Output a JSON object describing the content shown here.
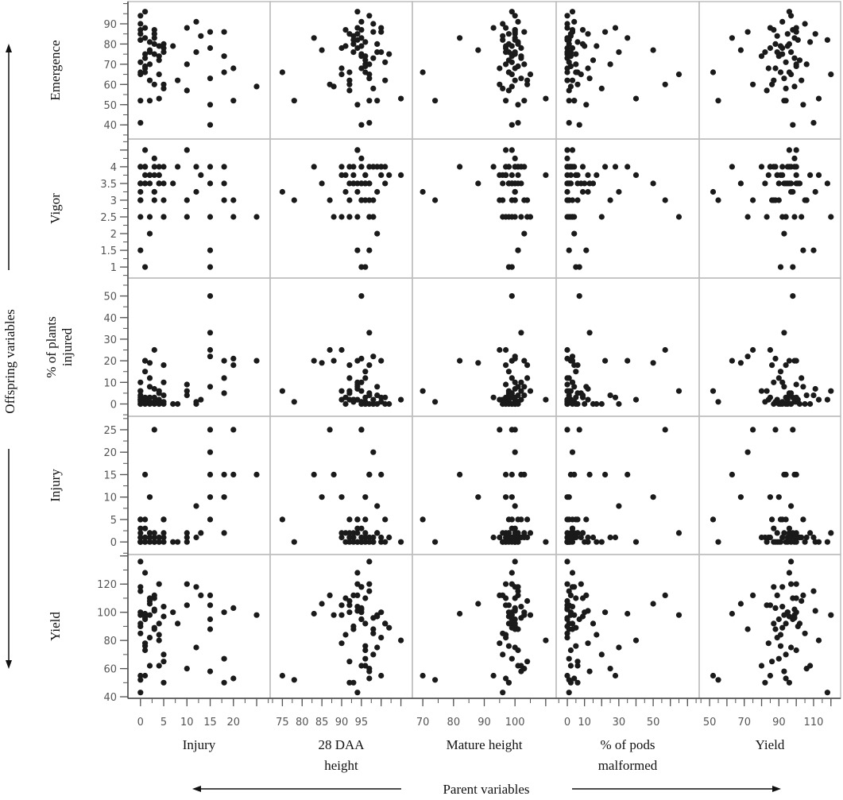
{
  "chart_data": {
    "type": "scatter",
    "layout": "scatterplot-matrix",
    "grid": false,
    "side_label": "Offspring variables",
    "bottom_label": "Parent variables",
    "columns": [
      {
        "key": "p_injury",
        "label": "Injury",
        "xlim": [
          -2.7,
          27.9
        ],
        "ticks": [
          0,
          5,
          10,
          15,
          20,
          25
        ],
        "tick_labels": [
          "0",
          "5",
          "10",
          "15",
          "20",
          ""
        ]
      },
      {
        "key": "p_daa28",
        "label": "28 DAA height",
        "label_lines": [
          "28 DAA",
          "height"
        ],
        "xlim": [
          71.9,
          107.9
        ],
        "ticks": [
          75,
          80,
          85,
          90,
          95,
          100,
          105
        ],
        "tick_labels": [
          "75",
          "80",
          "85",
          "90",
          "95",
          "",
          ""
        ]
      },
      {
        "key": "p_mature",
        "label": "Mature height",
        "xlim": [
          66.6,
          113.4
        ],
        "ticks": [
          70,
          80,
          90,
          100,
          110
        ],
        "tick_labels": [
          "70",
          "80",
          "90",
          "100",
          ""
        ]
      },
      {
        "key": "p_pods",
        "label": "% of pods malformed",
        "label_lines": [
          "% of pods",
          "malformed"
        ],
        "xlim": [
          -6.5,
          76.8
        ],
        "ticks": [
          0,
          10,
          20,
          30,
          40,
          50,
          60,
          70
        ],
        "tick_labels": [
          "0",
          "10",
          "",
          "30",
          "",
          "50",
          "",
          ""
        ]
      },
      {
        "key": "p_yield",
        "label": "Yield",
        "xlim": [
          44,
          125.6
        ],
        "ticks": [
          50,
          60,
          70,
          80,
          90,
          100,
          110,
          120
        ],
        "tick_labels": [
          "50",
          "",
          "70",
          "",
          "90",
          "",
          "110",
          ""
        ]
      }
    ],
    "rows": [
      {
        "key": "o_emergence",
        "label": "Emergence",
        "label_lines": [
          "Emergence"
        ],
        "ylim": [
          33,
          101
        ],
        "ticks": [
          40,
          50,
          60,
          70,
          80,
          90
        ],
        "tick_labels": [
          "40",
          "50",
          "60",
          "70",
          "80",
          "90"
        ]
      },
      {
        "key": "o_vigor",
        "label": "Vigor",
        "label_lines": [
          "Vigor"
        ],
        "ylim": [
          0.67,
          4.83
        ],
        "ticks": [
          1,
          1.5,
          2,
          2.5,
          3,
          3.5,
          4,
          4.5
        ],
        "tick_labels": [
          "1",
          "1.5",
          "2",
          "2.5",
          "3",
          "3.5",
          "4",
          ""
        ]
      },
      {
        "key": "o_plants_injured",
        "label": "% of plants injured",
        "label_lines": [
          "% of plants",
          "injured"
        ],
        "ylim": [
          -5.7,
          58.3
        ],
        "ticks": [
          0,
          10,
          20,
          30,
          40,
          50
        ],
        "tick_labels": [
          "0",
          "10",
          "20",
          "30",
          "40",
          "50"
        ]
      },
      {
        "key": "o_injury",
        "label": "Injury",
        "label_lines": [
          "Injury"
        ],
        "ylim": [
          -2.8,
          28
        ],
        "ticks": [
          0,
          5,
          10,
          15,
          20,
          25
        ],
        "tick_labels": [
          "0",
          "5",
          "10",
          "15",
          "20",
          "25"
        ]
      },
      {
        "key": "o_yield",
        "label": "Yield",
        "label_lines": [
          "Yield"
        ],
        "ylim": [
          38.9,
          141
        ],
        "ticks": [
          40,
          60,
          80,
          100,
          120,
          140
        ],
        "tick_labels": [
          "40",
          "60",
          "80",
          "100",
          "120",
          ""
        ]
      }
    ],
    "observation_fields": [
      "p_injury",
      "p_daa28",
      "p_mature",
      "p_pods",
      "p_yield",
      "o_emergence",
      "o_vigor",
      "o_plants_injured",
      "o_injury",
      "o_yield"
    ],
    "observations": [
      [
        0,
        92,
        98,
        2,
        95,
        85,
        4,
        2,
        1,
        100
      ],
      [
        1,
        95,
        100,
        0,
        90,
        75,
        3.5,
        0,
        0,
        95
      ],
      [
        2,
        96,
        97,
        5,
        100,
        70,
        3.75,
        3,
        1,
        110
      ],
      [
        3,
        93,
        101,
        1,
        88,
        80,
        4,
        1,
        0,
        88
      ],
      [
        4,
        97,
        99,
        8,
        97,
        65,
        3.5,
        5,
        1,
        120
      ],
      [
        5,
        94,
        102,
        3,
        92,
        78,
        2.5,
        10,
        5,
        104
      ],
      [
        0,
        98,
        96,
        0,
        105,
        90,
        3,
        0,
        0,
        85
      ],
      [
        1,
        90,
        95,
        12,
        84,
        68,
        3.75,
        2,
        1,
        78
      ],
      [
        2,
        99,
        103,
        4,
        93,
        52,
        2,
        8,
        2,
        98
      ],
      [
        3,
        95,
        100,
        0,
        99,
        83,
        4.25,
        1,
        0,
        102
      ],
      [
        4,
        96,
        98,
        15,
        102,
        72,
        3.5,
        0,
        1,
        92
      ],
      [
        5,
        92,
        104,
        6,
        86,
        60,
        3,
        18,
        5,
        65
      ],
      [
        0,
        97,
        101,
        1,
        110,
        41,
        1.5,
        4,
        1,
        115
      ],
      [
        1,
        94,
        99,
        3,
        96,
        96,
        4.5,
        20,
        3,
        128
      ],
      [
        2,
        100,
        97,
        0,
        89,
        76,
        3.75,
        1,
        0,
        82
      ],
      [
        3,
        91,
        100,
        9,
        98,
        87,
        3.25,
        3,
        2,
        110
      ],
      [
        4,
        95,
        102,
        2,
        80,
        74,
        4,
        6,
        1,
        62
      ],
      [
        5,
        98,
        96,
        20,
        94,
        58,
        2.5,
        0,
        0,
        70
      ],
      [
        0,
        93,
        100,
        0,
        101,
        82,
        3.5,
        2,
        1,
        90
      ],
      [
        1,
        96,
        98,
        5,
        91,
        66,
        1,
        15,
        5,
        76
      ],
      [
        7,
        95,
        99,
        10,
        95,
        79,
        3.5,
        0,
        0,
        100
      ],
      [
        8,
        101,
        100,
        3,
        87,
        62,
        4,
        0,
        0,
        92
      ],
      [
        10,
        94,
        97,
        0,
        100,
        88,
        4.5,
        9,
        2,
        120
      ],
      [
        10,
        97,
        103,
        25,
        106,
        70,
        3,
        4,
        1,
        60
      ],
      [
        10,
        92,
        98,
        1,
        83,
        57,
        2.5,
        6,
        0,
        105
      ],
      [
        12,
        95,
        101,
        4,
        92,
        91,
        4,
        1,
        1,
        118
      ],
      [
        12,
        99,
        100,
        30,
        97,
        76,
        3.25,
        0,
        8,
        75
      ],
      [
        13,
        93,
        96,
        2,
        89,
        84,
        3.75,
        2,
        2,
        112
      ],
      [
        15,
        95,
        99,
        7,
        98,
        40,
        1,
        50,
        25,
        95
      ],
      [
        15,
        97,
        102,
        13,
        93,
        63,
        3.5,
        33,
        15,
        58
      ],
      [
        15,
        90,
        97,
        0,
        85,
        78,
        4,
        25,
        10,
        105
      ],
      [
        15,
        98,
        100,
        3,
        72,
        86,
        2.5,
        22,
        20,
        88
      ],
      [
        15,
        94,
        101,
        11,
        104,
        50,
        1.5,
        8,
        5,
        112
      ],
      [
        18,
        96,
        99,
        1,
        90,
        74,
        3,
        12,
        10,
        67
      ],
      [
        18,
        92,
        98,
        6,
        96,
        66,
        3.5,
        5,
        2,
        50
      ],
      [
        18,
        100,
        103,
        22,
        100,
        86,
        4,
        20,
        15,
        100
      ],
      [
        20,
        95,
        100,
        0,
        88,
        68,
        3,
        21,
        25,
        103
      ],
      [
        20,
        97,
        97,
        4,
        94,
        52,
        2.5,
        18,
        15,
        53
      ],
      [
        25,
        88,
        99,
        2,
        99,
        59,
        2.5,
        20,
        15,
        98
      ],
      [
        0,
        75,
        70,
        0,
        52,
        66,
        3.25,
        6,
        5,
        55
      ],
      [
        0,
        78,
        74,
        1,
        55,
        52,
        3,
        1,
        0,
        52
      ],
      [
        1,
        83,
        82,
        35,
        63,
        83,
        4,
        20,
        15,
        99
      ],
      [
        2,
        85,
        88,
        50,
        68,
        77,
        3.5,
        19,
        10,
        106
      ],
      [
        3,
        87,
        95,
        57,
        75,
        60,
        3,
        25,
        25,
        112
      ],
      [
        0,
        90,
        105,
        65,
        120,
        65,
        2.5,
        6,
        2,
        98
      ],
      [
        4,
        105,
        110,
        40,
        113,
        53,
        3.75,
        2,
        0,
        80
      ],
      [
        1,
        100,
        93,
        28,
        85,
        88,
        4,
        3,
        1,
        55
      ],
      [
        0,
        97,
        100,
        0,
        97,
        94,
        4,
        0,
        0,
        136
      ],
      [
        5,
        93,
        98,
        2,
        82,
        76,
        3.5,
        1,
        1,
        50
      ],
      [
        2,
        96,
        101,
        6,
        108,
        81,
        3.75,
        0,
        2,
        62
      ],
      [
        0,
        101,
        99,
        1,
        94,
        71,
        3.5,
        3,
        5,
        92
      ],
      [
        3,
        94,
        100,
        12,
        111,
        85,
        3.25,
        7,
        0,
        101
      ],
      [
        1,
        98,
        102,
        0,
        99,
        73,
        4,
        2,
        1,
        96
      ],
      [
        4,
        91,
        97,
        17,
        91,
        79,
        3.75,
        0,
        0,
        84
      ],
      [
        0,
        95,
        100,
        3,
        87,
        87,
        3,
        10,
        3,
        118
      ],
      [
        2,
        92,
        104,
        0,
        103,
        62,
        2.5,
        12,
        1,
        108
      ],
      [
        5,
        99,
        98,
        9,
        96,
        80,
        4,
        4,
        2,
        97
      ],
      [
        1,
        96,
        101,
        2,
        100,
        69,
        3.5,
        1,
        0,
        73
      ],
      [
        3,
        102,
        99,
        5,
        92,
        75,
        3.75,
        0,
        1,
        89
      ],
      [
        0,
        94,
        96,
        1,
        118,
        82,
        3.5,
        2,
        0,
        43
      ]
    ],
    "colors": {
      "points": "#1a1a1a",
      "panel_border": "#bdbdbd",
      "axis": "#555555"
    }
  }
}
